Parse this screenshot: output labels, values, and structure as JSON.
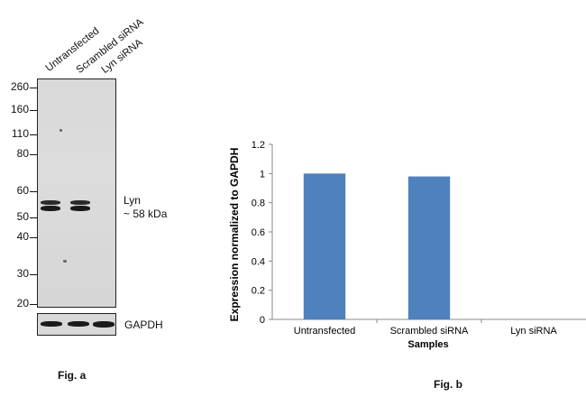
{
  "blot": {
    "lanes": [
      "Untransfected",
      "Scrambled siRNA",
      "Lyn siRNA"
    ],
    "markers": [
      "260",
      "160",
      "110",
      "80",
      "60",
      "50",
      "40",
      "30",
      "20"
    ],
    "band_label_1": "Lyn",
    "band_label_2": "~ 58 kDa",
    "loading_label": "GAPDH",
    "fig_label": "Fig. a"
  },
  "chart_data": {
    "type": "bar",
    "categories": [
      "Untransfected",
      "Scrambled siRNA",
      "Lyn siRNA"
    ],
    "values": [
      1.0,
      0.98,
      0.0
    ],
    "title": "",
    "xlabel": "Samples",
    "ylabel": "Expression normalized to GAPDH",
    "ylim": [
      0,
      1.2
    ],
    "yticks": [
      "0",
      "0.2",
      "0.4",
      "0.6",
      "0.8",
      "1",
      "1.2"
    ],
    "grid": false,
    "bar_color": "#4f81bd",
    "fig_label": "Fig. b"
  }
}
